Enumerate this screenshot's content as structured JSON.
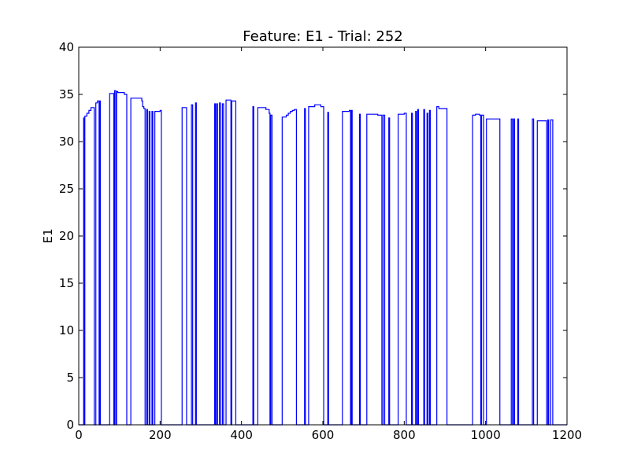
{
  "chart_data": {
    "type": "line",
    "title": "Feature: E1 - Trial: 252",
    "xlabel": "",
    "ylabel": "E1",
    "xlim": [
      0,
      1200
    ],
    "ylim": [
      0,
      40
    ],
    "xticks": [
      0,
      200,
      400,
      600,
      800,
      1000,
      1200
    ],
    "yticks": [
      0,
      5,
      10,
      15,
      20,
      25,
      30,
      35,
      40
    ],
    "grid": false,
    "series": [
      {
        "color": "#0000ff",
        "step": true,
        "points": [
          [
            0,
            0
          ],
          [
            12,
            0
          ],
          [
            12,
            32.5
          ],
          [
            14,
            32.5
          ],
          [
            14,
            0
          ],
          [
            15,
            0
          ],
          [
            15,
            32.7
          ],
          [
            20,
            32.7
          ],
          [
            20,
            33.0
          ],
          [
            25,
            33.0
          ],
          [
            25,
            33.3
          ],
          [
            30,
            33.3
          ],
          [
            30,
            33.6
          ],
          [
            38,
            33.6
          ],
          [
            38,
            0
          ],
          [
            42,
            0
          ],
          [
            42,
            34.1
          ],
          [
            46,
            34.1
          ],
          [
            46,
            34.3
          ],
          [
            50,
            34.3
          ],
          [
            50,
            0
          ],
          [
            52,
            0
          ],
          [
            52,
            34.3
          ],
          [
            53,
            34.3
          ],
          [
            53,
            0
          ],
          [
            76,
            0
          ],
          [
            76,
            35.1
          ],
          [
            86,
            35.1
          ],
          [
            86,
            0
          ],
          [
            88,
            0
          ],
          [
            88,
            35.4
          ],
          [
            91,
            35.4
          ],
          [
            91,
            0
          ],
          [
            93,
            0
          ],
          [
            93,
            35.3
          ],
          [
            96,
            35.3
          ],
          [
            96,
            35.2
          ],
          [
            112,
            35.2
          ],
          [
            112,
            35.0
          ],
          [
            118,
            35.0
          ],
          [
            118,
            0
          ],
          [
            128,
            0
          ],
          [
            128,
            34.6
          ],
          [
            155,
            34.6
          ],
          [
            155,
            34.3
          ],
          [
            157,
            34.3
          ],
          [
            157,
            33.7
          ],
          [
            160,
            33.7
          ],
          [
            160,
            33.5
          ],
          [
            163,
            33.5
          ],
          [
            163,
            0
          ],
          [
            167,
            0
          ],
          [
            167,
            33.4
          ],
          [
            169,
            33.4
          ],
          [
            169,
            0
          ],
          [
            173,
            0
          ],
          [
            173,
            33.2
          ],
          [
            175,
            33.2
          ],
          [
            175,
            0
          ],
          [
            180,
            0
          ],
          [
            180,
            33.2
          ],
          [
            182,
            33.2
          ],
          [
            182,
            0
          ],
          [
            187,
            0
          ],
          [
            187,
            33.2
          ],
          [
            200,
            33.2
          ],
          [
            200,
            33.3
          ],
          [
            203,
            33.3
          ],
          [
            203,
            0
          ],
          [
            254,
            0
          ],
          [
            254,
            33.6
          ],
          [
            265,
            33.6
          ],
          [
            265,
            0
          ],
          [
            277,
            0
          ],
          [
            277,
            33.9
          ],
          [
            280,
            33.9
          ],
          [
            280,
            0
          ],
          [
            287,
            0
          ],
          [
            287,
            34.1
          ],
          [
            289,
            34.1
          ],
          [
            289,
            0
          ],
          [
            334,
            0
          ],
          [
            334,
            34.0
          ],
          [
            336,
            34.0
          ],
          [
            336,
            0
          ],
          [
            339,
            0
          ],
          [
            339,
            34.0
          ],
          [
            341,
            34.0
          ],
          [
            341,
            0
          ],
          [
            346,
            0
          ],
          [
            346,
            34.1
          ],
          [
            348,
            34.1
          ],
          [
            348,
            0
          ],
          [
            353,
            0
          ],
          [
            353,
            34.0
          ],
          [
            356,
            34.0
          ],
          [
            356,
            0
          ],
          [
            362,
            0
          ],
          [
            362,
            34.4
          ],
          [
            374,
            34.4
          ],
          [
            374,
            0
          ],
          [
            376,
            0
          ],
          [
            376,
            34.3
          ],
          [
            386,
            34.3
          ],
          [
            386,
            0
          ],
          [
            428,
            0
          ],
          [
            428,
            33.7
          ],
          [
            430,
            33.7
          ],
          [
            430,
            0
          ],
          [
            440,
            0
          ],
          [
            440,
            33.6
          ],
          [
            460,
            33.6
          ],
          [
            460,
            33.4
          ],
          [
            468,
            33.4
          ],
          [
            468,
            33.0
          ],
          [
            470,
            33.0
          ],
          [
            470,
            0
          ],
          [
            472,
            0
          ],
          [
            472,
            32.8
          ],
          [
            475,
            32.8
          ],
          [
            475,
            0
          ],
          [
            500,
            0
          ],
          [
            500,
            32.6
          ],
          [
            510,
            32.6
          ],
          [
            510,
            32.8
          ],
          [
            515,
            32.8
          ],
          [
            515,
            33.0
          ],
          [
            520,
            33.0
          ],
          [
            520,
            33.2
          ],
          [
            525,
            33.2
          ],
          [
            525,
            33.3
          ],
          [
            530,
            33.3
          ],
          [
            530,
            33.4
          ],
          [
            535,
            33.4
          ],
          [
            535,
            0
          ],
          [
            555,
            0
          ],
          [
            555,
            33.5
          ],
          [
            557,
            33.5
          ],
          [
            557,
            0
          ],
          [
            565,
            0
          ],
          [
            565,
            33.7
          ],
          [
            580,
            33.7
          ],
          [
            580,
            33.9
          ],
          [
            595,
            33.9
          ],
          [
            595,
            33.7
          ],
          [
            602,
            33.7
          ],
          [
            602,
            0
          ],
          [
            612,
            0
          ],
          [
            612,
            33.1
          ],
          [
            614,
            33.1
          ],
          [
            614,
            0
          ],
          [
            648,
            0
          ],
          [
            648,
            33.2
          ],
          [
            665,
            33.2
          ],
          [
            665,
            33.3
          ],
          [
            668,
            33.3
          ],
          [
            668,
            0
          ],
          [
            670,
            0
          ],
          [
            670,
            33.3
          ],
          [
            672,
            33.3
          ],
          [
            672,
            0
          ],
          [
            690,
            0
          ],
          [
            690,
            32.9
          ],
          [
            692,
            32.9
          ],
          [
            692,
            0
          ],
          [
            708,
            0
          ],
          [
            708,
            32.9
          ],
          [
            735,
            32.9
          ],
          [
            735,
            32.8
          ],
          [
            745,
            32.8
          ],
          [
            745,
            0
          ],
          [
            748,
            0
          ],
          [
            748,
            32.8
          ],
          [
            752,
            32.8
          ],
          [
            752,
            0
          ],
          [
            762,
            0
          ],
          [
            762,
            32.5
          ],
          [
            764,
            32.5
          ],
          [
            764,
            0
          ],
          [
            785,
            0
          ],
          [
            785,
            32.9
          ],
          [
            800,
            32.9
          ],
          [
            800,
            33.0
          ],
          [
            805,
            33.0
          ],
          [
            805,
            0
          ],
          [
            818,
            0
          ],
          [
            818,
            33.0
          ],
          [
            820,
            33.0
          ],
          [
            820,
            0
          ],
          [
            828,
            0
          ],
          [
            828,
            33.2
          ],
          [
            830,
            33.2
          ],
          [
            830,
            0
          ],
          [
            833,
            0
          ],
          [
            833,
            33.4
          ],
          [
            835,
            33.4
          ],
          [
            835,
            0
          ],
          [
            848,
            0
          ],
          [
            848,
            33.4
          ],
          [
            850,
            33.4
          ],
          [
            850,
            0
          ],
          [
            856,
            0
          ],
          [
            856,
            33.0
          ],
          [
            858,
            33.0
          ],
          [
            858,
            0
          ],
          [
            862,
            0
          ],
          [
            862,
            33.3
          ],
          [
            864,
            33.3
          ],
          [
            864,
            0
          ],
          [
            880,
            0
          ],
          [
            880,
            33.7
          ],
          [
            885,
            33.7
          ],
          [
            885,
            33.5
          ],
          [
            905,
            33.5
          ],
          [
            905,
            0
          ],
          [
            968,
            0
          ],
          [
            968,
            32.8
          ],
          [
            975,
            32.8
          ],
          [
            975,
            32.9
          ],
          [
            985,
            32.9
          ],
          [
            985,
            32.8
          ],
          [
            988,
            32.8
          ],
          [
            988,
            0
          ],
          [
            990,
            0
          ],
          [
            990,
            32.8
          ],
          [
            995,
            32.8
          ],
          [
            995,
            0
          ],
          [
            1002,
            0
          ],
          [
            1002,
            32.4
          ],
          [
            1035,
            32.4
          ],
          [
            1035,
            0
          ],
          [
            1063,
            0
          ],
          [
            1063,
            32.4
          ],
          [
            1066,
            32.4
          ],
          [
            1066,
            0
          ],
          [
            1069,
            0
          ],
          [
            1069,
            32.4
          ],
          [
            1071,
            32.4
          ],
          [
            1071,
            0
          ],
          [
            1079,
            0
          ],
          [
            1079,
            32.4
          ],
          [
            1081,
            32.4
          ],
          [
            1081,
            0
          ],
          [
            1115,
            0
          ],
          [
            1115,
            32.4
          ],
          [
            1118,
            32.4
          ],
          [
            1118,
            0
          ],
          [
            1127,
            0
          ],
          [
            1127,
            32.2
          ],
          [
            1150,
            32.2
          ],
          [
            1150,
            0
          ],
          [
            1153,
            0
          ],
          [
            1153,
            32.3
          ],
          [
            1155,
            32.3
          ],
          [
            1155,
            0
          ],
          [
            1160,
            0
          ],
          [
            1160,
            32.3
          ],
          [
            1165,
            32.3
          ],
          [
            1165,
            0
          ],
          [
            1200,
            0
          ]
        ]
      }
    ]
  }
}
